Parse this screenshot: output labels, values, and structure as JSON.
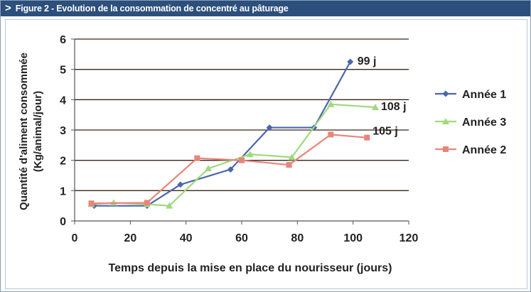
{
  "figure": {
    "banner_arrow": ">",
    "title": "Figure 2 - Evolution de la consommation de concentré au pâturage"
  },
  "chart_data": {
    "type": "line",
    "title": "Figure 2 - Evolution de la consommation de concentré au pâturage",
    "xlabel": "Temps depuis la mise en place du nourisseur (jours)",
    "ylabel_line1": "Quantité d'aliment consommée",
    "ylabel_line2": "(Kg/animal/jour)",
    "xlim": [
      0,
      120
    ],
    "ylim": [
      0,
      6
    ],
    "x_ticks": [
      0,
      20,
      40,
      60,
      80,
      100,
      120
    ],
    "y_ticks": [
      0,
      1,
      2,
      3,
      4,
      5,
      6
    ],
    "grid": "horizontal",
    "legend_position": "right",
    "series": [
      {
        "name": "Année 1",
        "color": "#4a66ac",
        "marker": "diamond",
        "end_label": "99 j",
        "points": [
          [
            7,
            0.5
          ],
          [
            26,
            0.5
          ],
          [
            38,
            1.2
          ],
          [
            56,
            1.7
          ],
          [
            70,
            3.08
          ],
          [
            86,
            3.08
          ],
          [
            99,
            5.25
          ]
        ]
      },
      {
        "name": "Année 3",
        "color": "#9fd97d",
        "marker": "triangle",
        "end_label": "108 j",
        "points": [
          [
            6,
            0.55
          ],
          [
            14,
            0.6
          ],
          [
            26,
            0.55
          ],
          [
            34,
            0.5
          ],
          [
            48,
            1.73
          ],
          [
            63,
            2.2
          ],
          [
            78,
            2.1
          ],
          [
            92,
            3.85
          ],
          [
            108,
            3.75
          ]
        ]
      },
      {
        "name": "Année 2",
        "color": "#e8857a",
        "marker": "square",
        "end_label": "105 j",
        "points": [
          [
            6,
            0.58
          ],
          [
            26,
            0.6
          ],
          [
            44,
            2.07
          ],
          [
            60,
            2.0
          ],
          [
            77,
            1.85
          ],
          [
            92,
            2.85
          ],
          [
            105,
            2.75
          ]
        ]
      }
    ]
  }
}
